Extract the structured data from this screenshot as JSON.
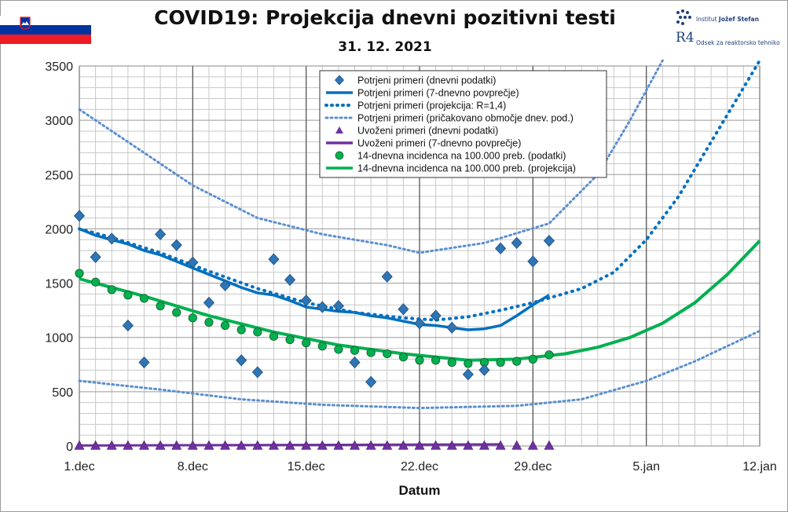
{
  "header": {
    "title": "COVID19: Projekcija dnevni pozitivni testi",
    "subtitle": "31. 12. 2021",
    "logo1_text_a": "Institut ",
    "logo1_text_b": "Jožef Stefan",
    "logo2_mark": "R4",
    "logo2_text": "Odsek za reaktorsko tehniko"
  },
  "colors": {
    "blue_marker": "#2e75b6",
    "blue_line": "#0070c0",
    "blue_light": "#5b8fd0",
    "purple": "#7030a0",
    "green": "#00b050",
    "flag_red": "#ed1c24",
    "flag_blue": "#0033a0"
  },
  "chart_data": {
    "type": "line",
    "xlabel": "Datum",
    "ylabel": "",
    "x_unit": "days from 1.dec",
    "xlim": [
      "1.dec",
      "12.jan"
    ],
    "ylim": [
      0,
      3500
    ],
    "yticks": [
      0,
      500,
      1000,
      1500,
      2000,
      2500,
      3000,
      3500
    ],
    "xticks": [
      {
        "label": "1.dec",
        "date": "2021-12-01"
      },
      {
        "label": "8.dec",
        "date": "2021-12-08"
      },
      {
        "label": "15.dec",
        "date": "2021-12-15"
      },
      {
        "label": "22.dec",
        "date": "2021-12-22"
      },
      {
        "label": "29.dec",
        "date": "2021-12-29"
      },
      {
        "label": "5.jan",
        "date": "2022-01-05"
      },
      {
        "label": "12.jan",
        "date": "2022-01-12"
      }
    ],
    "grid": true,
    "legend_position": "top-center",
    "series": [
      {
        "name": "Potrjeni primeri (dnevni podatki)",
        "style": "diamond",
        "dates": [
          "2021-12-01",
          "2021-12-02",
          "2021-12-03",
          "2021-12-04",
          "2021-12-05",
          "2021-12-06",
          "2021-12-07",
          "2021-12-08",
          "2021-12-09",
          "2021-12-10",
          "2021-12-11",
          "2021-12-12",
          "2021-12-13",
          "2021-12-14",
          "2021-12-15",
          "2021-12-16",
          "2021-12-17",
          "2021-12-18",
          "2021-12-19",
          "2021-12-20",
          "2021-12-21",
          "2021-12-22",
          "2021-12-23",
          "2021-12-24",
          "2021-12-25",
          "2021-12-26",
          "2021-12-27",
          "2021-12-28",
          "2021-12-29",
          "2021-12-30"
        ],
        "values": [
          2120,
          1740,
          1910,
          1110,
          770,
          1950,
          1850,
          1690,
          1320,
          1480,
          790,
          680,
          1720,
          1530,
          1340,
          1280,
          1290,
          770,
          590,
          1560,
          1260,
          1130,
          1200,
          1090,
          660,
          700,
          1820,
          1870,
          1700,
          1890
        ]
      },
      {
        "name": "Potrjeni primeri (7-dnevno povprečje)",
        "style": "solid",
        "dates": [
          "2021-12-01",
          "2021-12-02",
          "2021-12-03",
          "2021-12-04",
          "2021-12-05",
          "2021-12-06",
          "2021-12-07",
          "2021-12-08",
          "2021-12-09",
          "2021-12-10",
          "2021-12-11",
          "2021-12-12",
          "2021-12-13",
          "2021-12-14",
          "2021-12-15",
          "2021-12-16",
          "2021-12-17",
          "2021-12-18",
          "2021-12-19",
          "2021-12-20",
          "2021-12-21",
          "2021-12-22",
          "2021-12-23",
          "2021-12-24",
          "2021-12-25",
          "2021-12-26",
          "2021-12-27",
          "2021-12-28",
          "2021-12-29",
          "2021-12-30"
        ],
        "values": [
          2000,
          1940,
          1900,
          1860,
          1800,
          1760,
          1700,
          1640,
          1580,
          1520,
          1460,
          1410,
          1390,
          1340,
          1280,
          1260,
          1240,
          1230,
          1200,
          1180,
          1150,
          1120,
          1110,
          1090,
          1070,
          1080,
          1110,
          1200,
          1300,
          1390
        ]
      },
      {
        "name": "Potrjeni primeri (projekcija: R=1,4)",
        "style": "dotted-thick",
        "dates": [
          "2021-12-01",
          "2021-12-03",
          "2021-12-06",
          "2021-12-09",
          "2021-12-12",
          "2021-12-15",
          "2021-12-18",
          "2021-12-21",
          "2021-12-23",
          "2021-12-25",
          "2021-12-27",
          "2021-12-29",
          "2022-01-01",
          "2022-01-03",
          "2022-01-05",
          "2022-01-07",
          "2022-01-09",
          "2022-01-11",
          "2022-01-12"
        ],
        "values": [
          2000,
          1920,
          1780,
          1610,
          1450,
          1320,
          1230,
          1180,
          1160,
          1190,
          1250,
          1320,
          1450,
          1600,
          1900,
          2300,
          2800,
          3300,
          3550
        ]
      },
      {
        "name": "Potrjeni primeri (pričakovano območje dnev. pod.)",
        "style": "dotted-thin",
        "bands": [
          {
            "dates": [
              "2021-12-01",
              "2021-12-04",
              "2021-12-08",
              "2021-12-12",
              "2021-12-16",
              "2021-12-20",
              "2021-12-22",
              "2021-12-26",
              "2021-12-30",
              "2022-01-02",
              "2022-01-04",
              "2022-01-06"
            ],
            "values": [
              3100,
              2800,
              2400,
              2100,
              1950,
              1850,
              1780,
              1870,
              2050,
              2500,
              3000,
              3550
            ]
          },
          {
            "dates": [
              "2021-12-01",
              "2021-12-06",
              "2021-12-11",
              "2021-12-16",
              "2021-12-22",
              "2021-12-28",
              "2022-01-01",
              "2022-01-05",
              "2022-01-08",
              "2022-01-12"
            ],
            "values": [
              600,
              520,
              430,
              380,
              350,
              370,
              430,
              600,
              780,
              1060
            ]
          }
        ]
      },
      {
        "name": "Uvoženi primeri (dnevni podatki)",
        "style": "triangle",
        "dates": [
          "2021-12-01",
          "2021-12-02",
          "2021-12-03",
          "2021-12-04",
          "2021-12-05",
          "2021-12-06",
          "2021-12-07",
          "2021-12-08",
          "2021-12-09",
          "2021-12-10",
          "2021-12-11",
          "2021-12-12",
          "2021-12-13",
          "2021-12-14",
          "2021-12-15",
          "2021-12-16",
          "2021-12-17",
          "2021-12-18",
          "2021-12-19",
          "2021-12-20",
          "2021-12-21",
          "2021-12-22",
          "2021-12-23",
          "2021-12-24",
          "2021-12-25",
          "2021-12-26",
          "2021-12-27",
          "2021-12-28",
          "2021-12-29",
          "2021-12-30"
        ],
        "values": [
          5,
          5,
          5,
          5,
          5,
          5,
          5,
          5,
          5,
          5,
          5,
          5,
          5,
          5,
          5,
          5,
          5,
          5,
          5,
          5,
          5,
          5,
          5,
          5,
          5,
          5,
          5,
          5,
          5,
          5
        ]
      },
      {
        "name": "Uvoženi primeri (7-dnevno povprečje)",
        "style": "solid",
        "dates": [
          "2021-12-01",
          "2021-12-15",
          "2021-12-27"
        ],
        "values": [
          5,
          10,
          15
        ]
      },
      {
        "name": "14-dnevna incidenca na 100.000 preb. (podatki)",
        "style": "circle",
        "dates": [
          "2021-12-01",
          "2021-12-02",
          "2021-12-03",
          "2021-12-04",
          "2021-12-05",
          "2021-12-06",
          "2021-12-07",
          "2021-12-08",
          "2021-12-09",
          "2021-12-10",
          "2021-12-11",
          "2021-12-12",
          "2021-12-13",
          "2021-12-14",
          "2021-12-15",
          "2021-12-16",
          "2021-12-17",
          "2021-12-18",
          "2021-12-19",
          "2021-12-20",
          "2021-12-21",
          "2021-12-22",
          "2021-12-23",
          "2021-12-24",
          "2021-12-25",
          "2021-12-26",
          "2021-12-27",
          "2021-12-28",
          "2021-12-29",
          "2021-12-30"
        ],
        "values": [
          1590,
          1510,
          1440,
          1390,
          1360,
          1290,
          1230,
          1180,
          1140,
          1110,
          1070,
          1050,
          1010,
          980,
          950,
          920,
          890,
          880,
          860,
          850,
          820,
          790,
          790,
          770,
          760,
          770,
          770,
          780,
          800,
          840
        ]
      },
      {
        "name": "14-dnevna incidenca na 100.000 preb. (projekcija)",
        "style": "solid",
        "dates": [
          "2021-12-01",
          "2021-12-05",
          "2021-12-09",
          "2021-12-13",
          "2021-12-17",
          "2021-12-21",
          "2021-12-25",
          "2021-12-28",
          "2021-12-31",
          "2022-01-02",
          "2022-01-04",
          "2022-01-06",
          "2022-01-08",
          "2022-01-10",
          "2022-01-12"
        ],
        "values": [
          1540,
          1380,
          1200,
          1050,
          930,
          850,
          790,
          800,
          850,
          910,
          1000,
          1130,
          1320,
          1580,
          1890
        ]
      }
    ]
  }
}
